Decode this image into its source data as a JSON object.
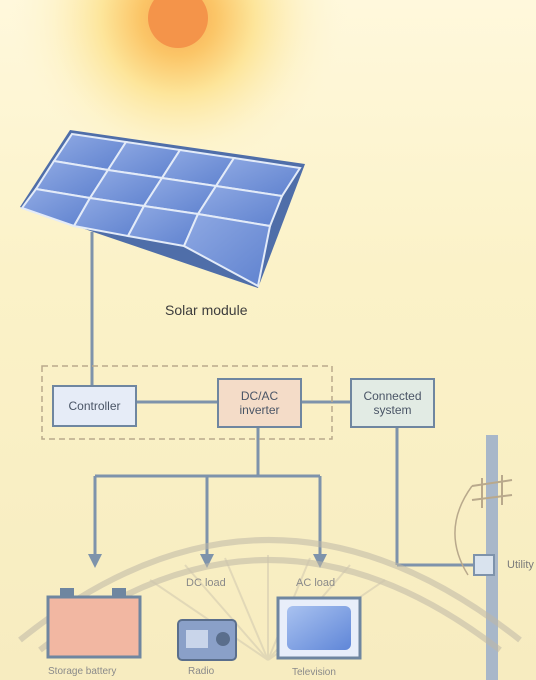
{
  "labels": {
    "solar_module": "Solar module",
    "controller": "Controller",
    "inverter_line1": "DC/AC",
    "inverter_line2": "inverter",
    "connected_line1": "Connected",
    "connected_line2": "system",
    "utility": "Utility",
    "dc_load": "DC  load",
    "ac_load": "AC  load",
    "storage_battery": "Storage battery",
    "radio": "Radio",
    "television": "Television"
  },
  "colors": {
    "sun_core": "#f59a4a",
    "panel_cell": "#6d8fd8",
    "wire": "#7e93ab",
    "controller_fill": "#e6ecf7",
    "inverter_fill": "#f4dcc8",
    "connected_fill": "#e2ebe4",
    "battery_fill": "#f2b7a2",
    "tv_fill": "#7aa0e6",
    "pole": "#9fb0c4"
  },
  "icons": [
    "sun-icon",
    "solar-panel-icon",
    "battery-icon",
    "radio-icon",
    "television-icon",
    "utility-pole-icon"
  ]
}
